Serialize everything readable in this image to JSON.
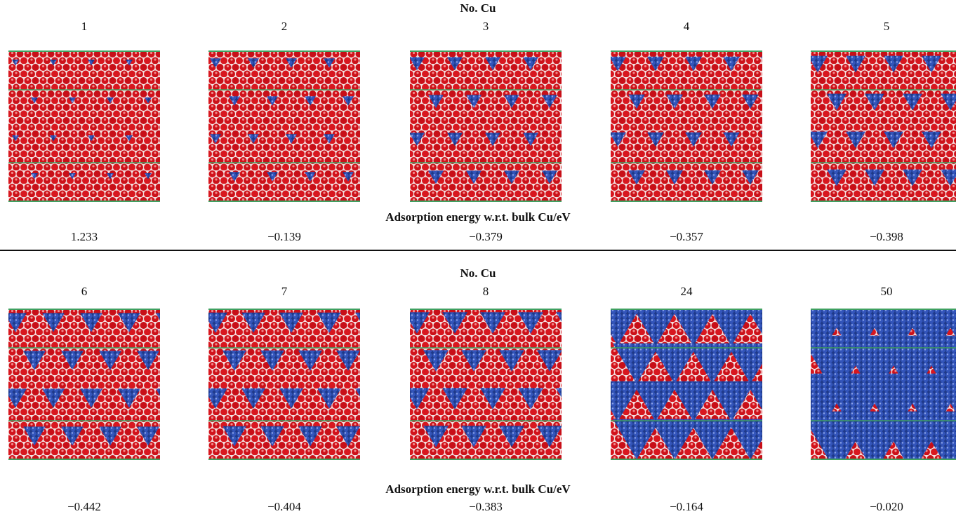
{
  "panels": [
    {
      "header": "No. Cu",
      "counts": [
        1,
        2,
        3,
        4,
        5
      ],
      "energy_header": "Adsorption energy w.r.t. bulk Cu/eV",
      "energies": [
        "1.233",
        "−0.139",
        "−0.379",
        "−0.357",
        "−0.398"
      ]
    },
    {
      "header": "No. Cu",
      "counts": [
        6,
        7,
        8,
        24,
        50
      ],
      "energy_header": "Adsorption energy w.r.t. bulk Cu/eV",
      "energies": [
        "−0.442",
        "−0.404",
        "−0.383",
        "−0.164",
        "−0.020"
      ]
    }
  ]
}
